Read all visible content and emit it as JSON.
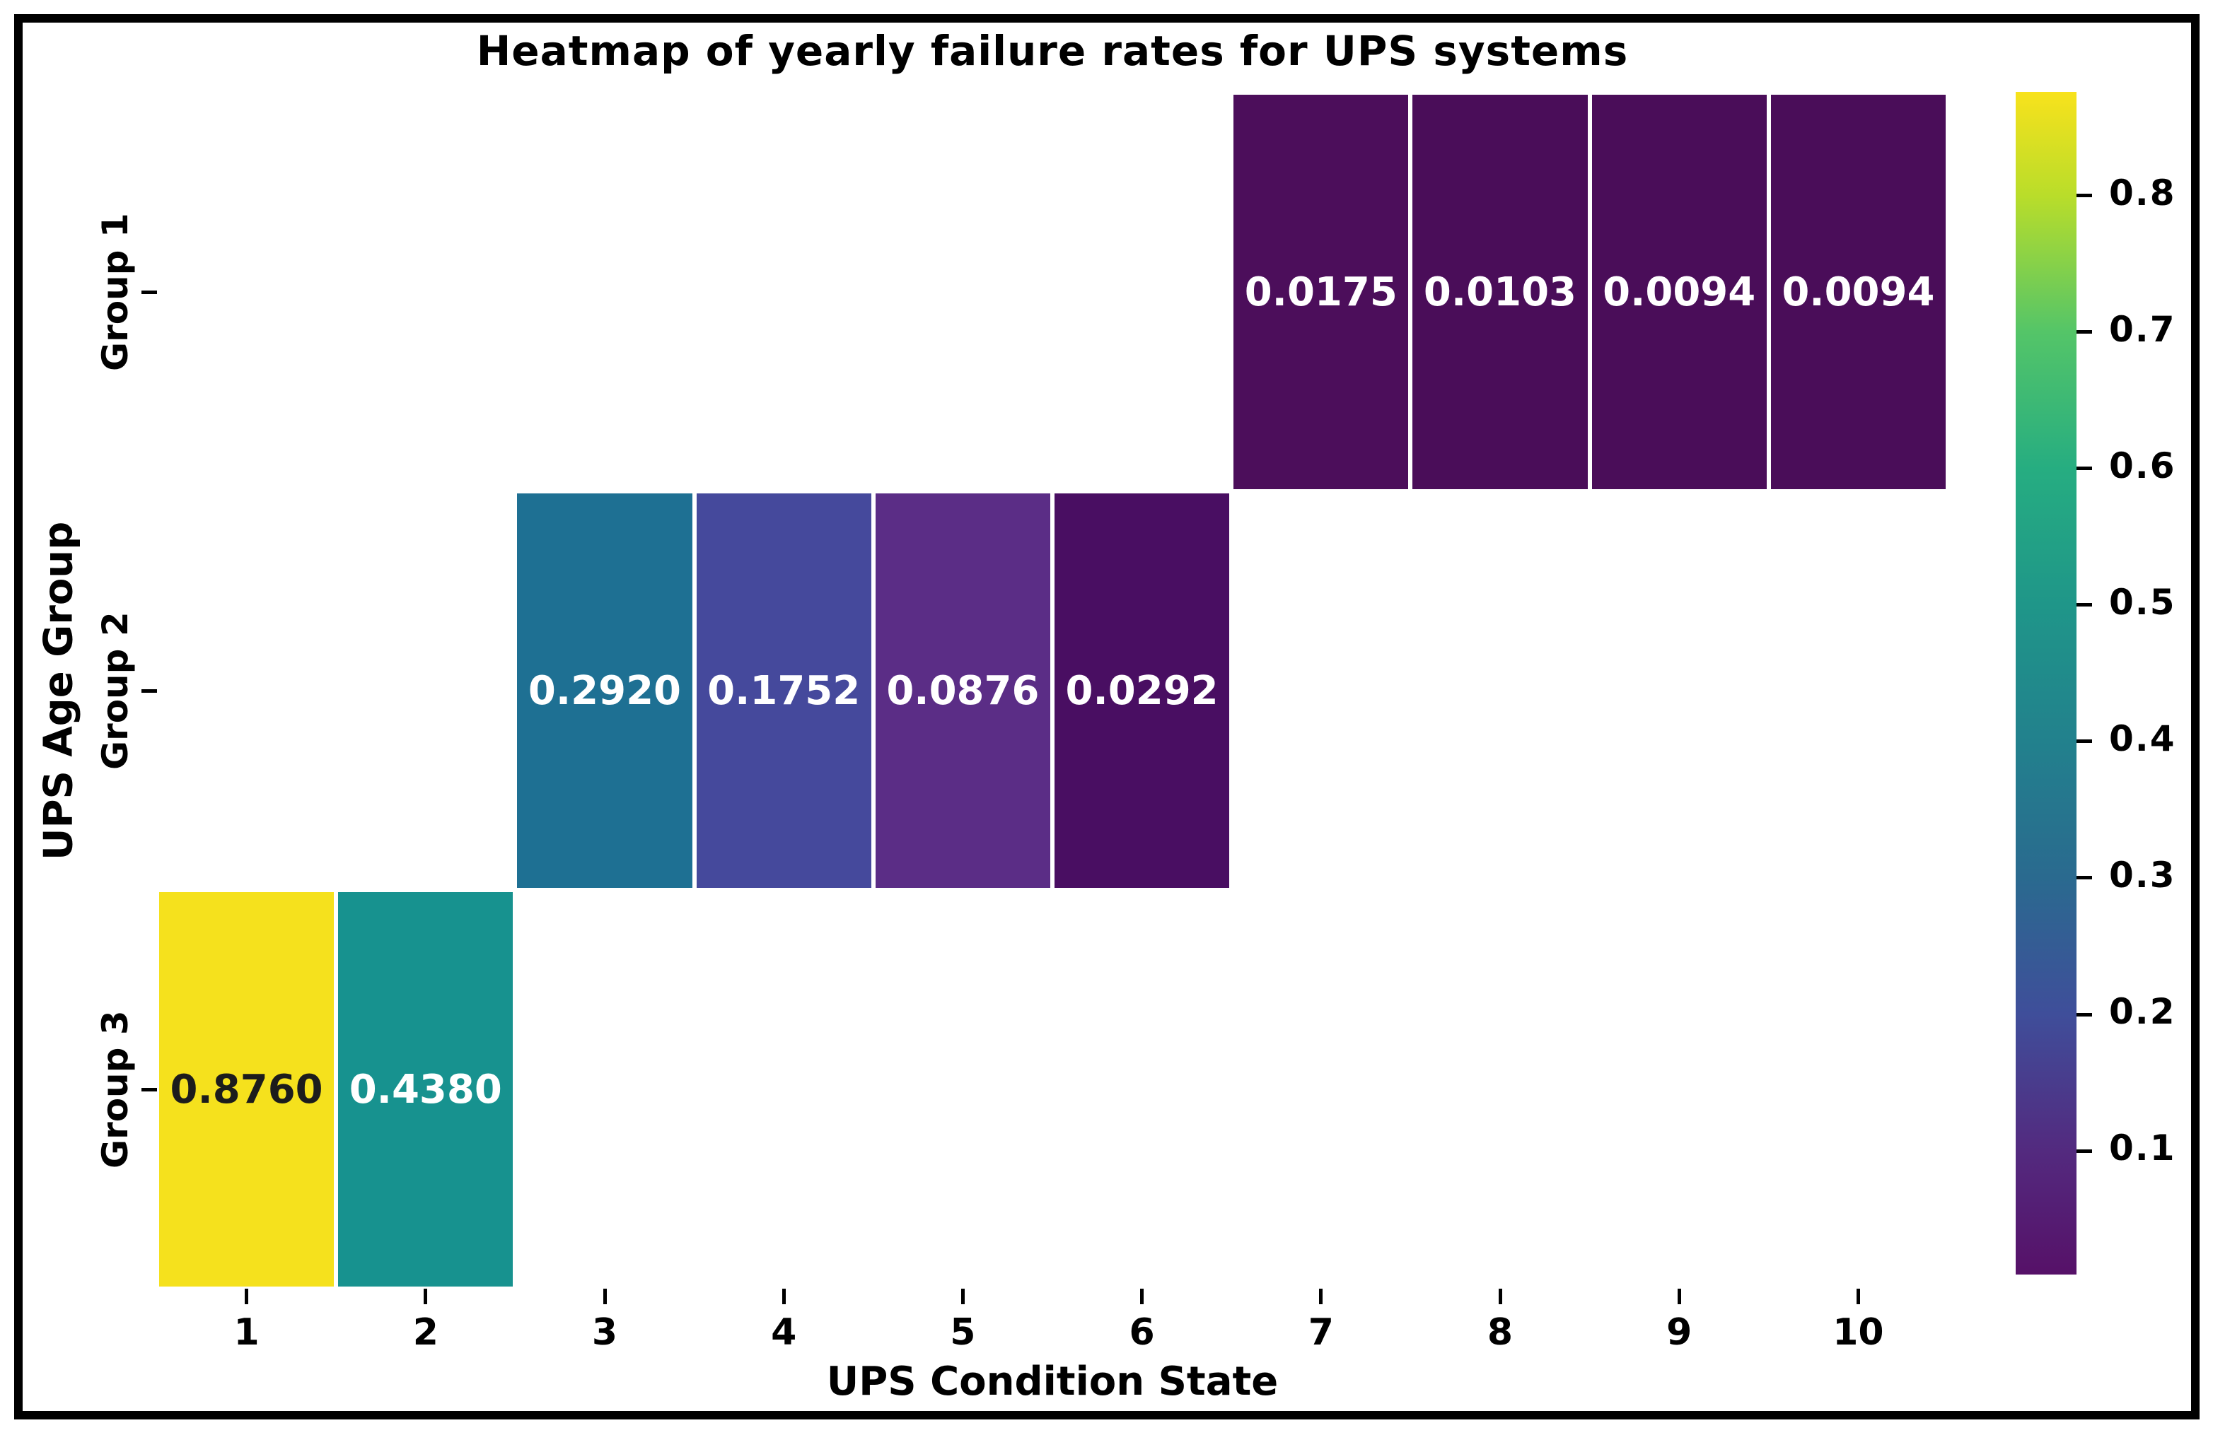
{
  "figure": {
    "title": "Heatmap of yearly failure rates for UPS systems",
    "xlabel": "UPS Condition State",
    "ylabel": "UPS Age Group",
    "background_color": "#ffffff",
    "frame_color": "#000000",
    "text_color": "#000000"
  },
  "chart_data": {
    "type": "heatmap",
    "title": "Heatmap of yearly failure rates for UPS systems",
    "xlabel": "UPS Condition State",
    "ylabel": "UPS Age Group",
    "x_categories": [
      "1",
      "2",
      "3",
      "4",
      "5",
      "6",
      "7",
      "8",
      "9",
      "10"
    ],
    "y_categories": [
      "Group 1",
      "Group 2",
      "Group 3"
    ],
    "values": [
      [
        null,
        null,
        null,
        null,
        null,
        null,
        0.0175,
        0.0103,
        0.0094,
        0.0094
      ],
      [
        null,
        null,
        0.292,
        0.1752,
        0.0876,
        0.0292,
        null,
        null,
        null,
        null
      ],
      [
        0.876,
        0.438,
        null,
        null,
        null,
        null,
        null,
        null,
        null,
        null
      ]
    ],
    "cells": [
      {
        "row": 0,
        "col": 6,
        "label": "0.0175",
        "color": "#4c0e5b",
        "text_color": "#ffffff"
      },
      {
        "row": 0,
        "col": 7,
        "label": "0.0103",
        "color": "#4a0d59",
        "text_color": "#ffffff"
      },
      {
        "row": 0,
        "col": 8,
        "label": "0.0094",
        "color": "#4a0d59",
        "text_color": "#ffffff"
      },
      {
        "row": 0,
        "col": 9,
        "label": "0.0094",
        "color": "#4a0d59",
        "text_color": "#ffffff"
      },
      {
        "row": 1,
        "col": 2,
        "label": "0.2920",
        "color": "#1e7093",
        "text_color": "#ffffff"
      },
      {
        "row": 1,
        "col": 3,
        "label": "0.1752",
        "color": "#45499c",
        "text_color": "#ffffff"
      },
      {
        "row": 1,
        "col": 4,
        "label": "0.0876",
        "color": "#5b2d86",
        "text_color": "#ffffff"
      },
      {
        "row": 1,
        "col": 5,
        "label": "0.0292",
        "color": "#490e62",
        "text_color": "#ffffff"
      },
      {
        "row": 2,
        "col": 0,
        "label": "0.8760",
        "color": "#f5e11d",
        "text_color": "#1c1c1c"
      },
      {
        "row": 2,
        "col": 1,
        "label": "0.4380",
        "color": "#17928f",
        "text_color": "#ffffff"
      }
    ],
    "empty_cell_color": "#ffffff",
    "grid": false,
    "colorbar": {
      "position": "right",
      "vmin": 0.0094,
      "vmax": 0.876,
      "tick_values": [
        0.8,
        0.7,
        0.6,
        0.5,
        0.4,
        0.3,
        0.2,
        0.1
      ],
      "tick_labels": [
        "0.8",
        "0.7",
        "0.6",
        "0.5",
        "0.4",
        "0.3",
        "0.2",
        "0.1"
      ],
      "gradient_top_to_bottom": [
        {
          "pos": 0,
          "color": "#f8e21c"
        },
        {
          "pos": 8.8,
          "color": "#b9dd2a"
        },
        {
          "pos": 20.3,
          "color": "#54c568"
        },
        {
          "pos": 31.9,
          "color": "#26ad81"
        },
        {
          "pos": 43.4,
          "color": "#1f9689"
        },
        {
          "pos": 54.9,
          "color": "#22818d"
        },
        {
          "pos": 66.4,
          "color": "#2a6a8f"
        },
        {
          "pos": 78.0,
          "color": "#3f4e9a"
        },
        {
          "pos": 89.5,
          "color": "#532a7f"
        },
        {
          "pos": 100,
          "color": "#561168"
        }
      ]
    }
  }
}
